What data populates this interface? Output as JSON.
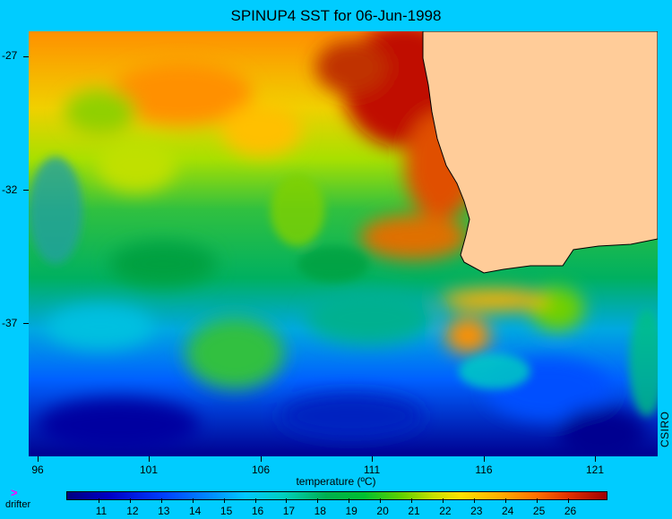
{
  "title": "SPINUP4 SST for 06-Jun-1998",
  "y_axis_labels": [
    "-27",
    "-32",
    "-37"
  ],
  "x_axis_labels": [
    "96",
    "101",
    "106",
    "111",
    "116",
    "121"
  ],
  "credit": "CSIRO",
  "colorbar": {
    "title": "temperature (ºC)",
    "labels": [
      "11",
      "12",
      "13",
      "14",
      "15",
      "16",
      "17",
      "18",
      "19",
      "20",
      "21",
      "22",
      "23",
      "24",
      "25",
      "26"
    ]
  },
  "legend": {
    "drifter_label": "drifter",
    "drifter_marker": ">"
  },
  "colors": {
    "background": "#00ccff",
    "land": "#ffcc99"
  }
}
